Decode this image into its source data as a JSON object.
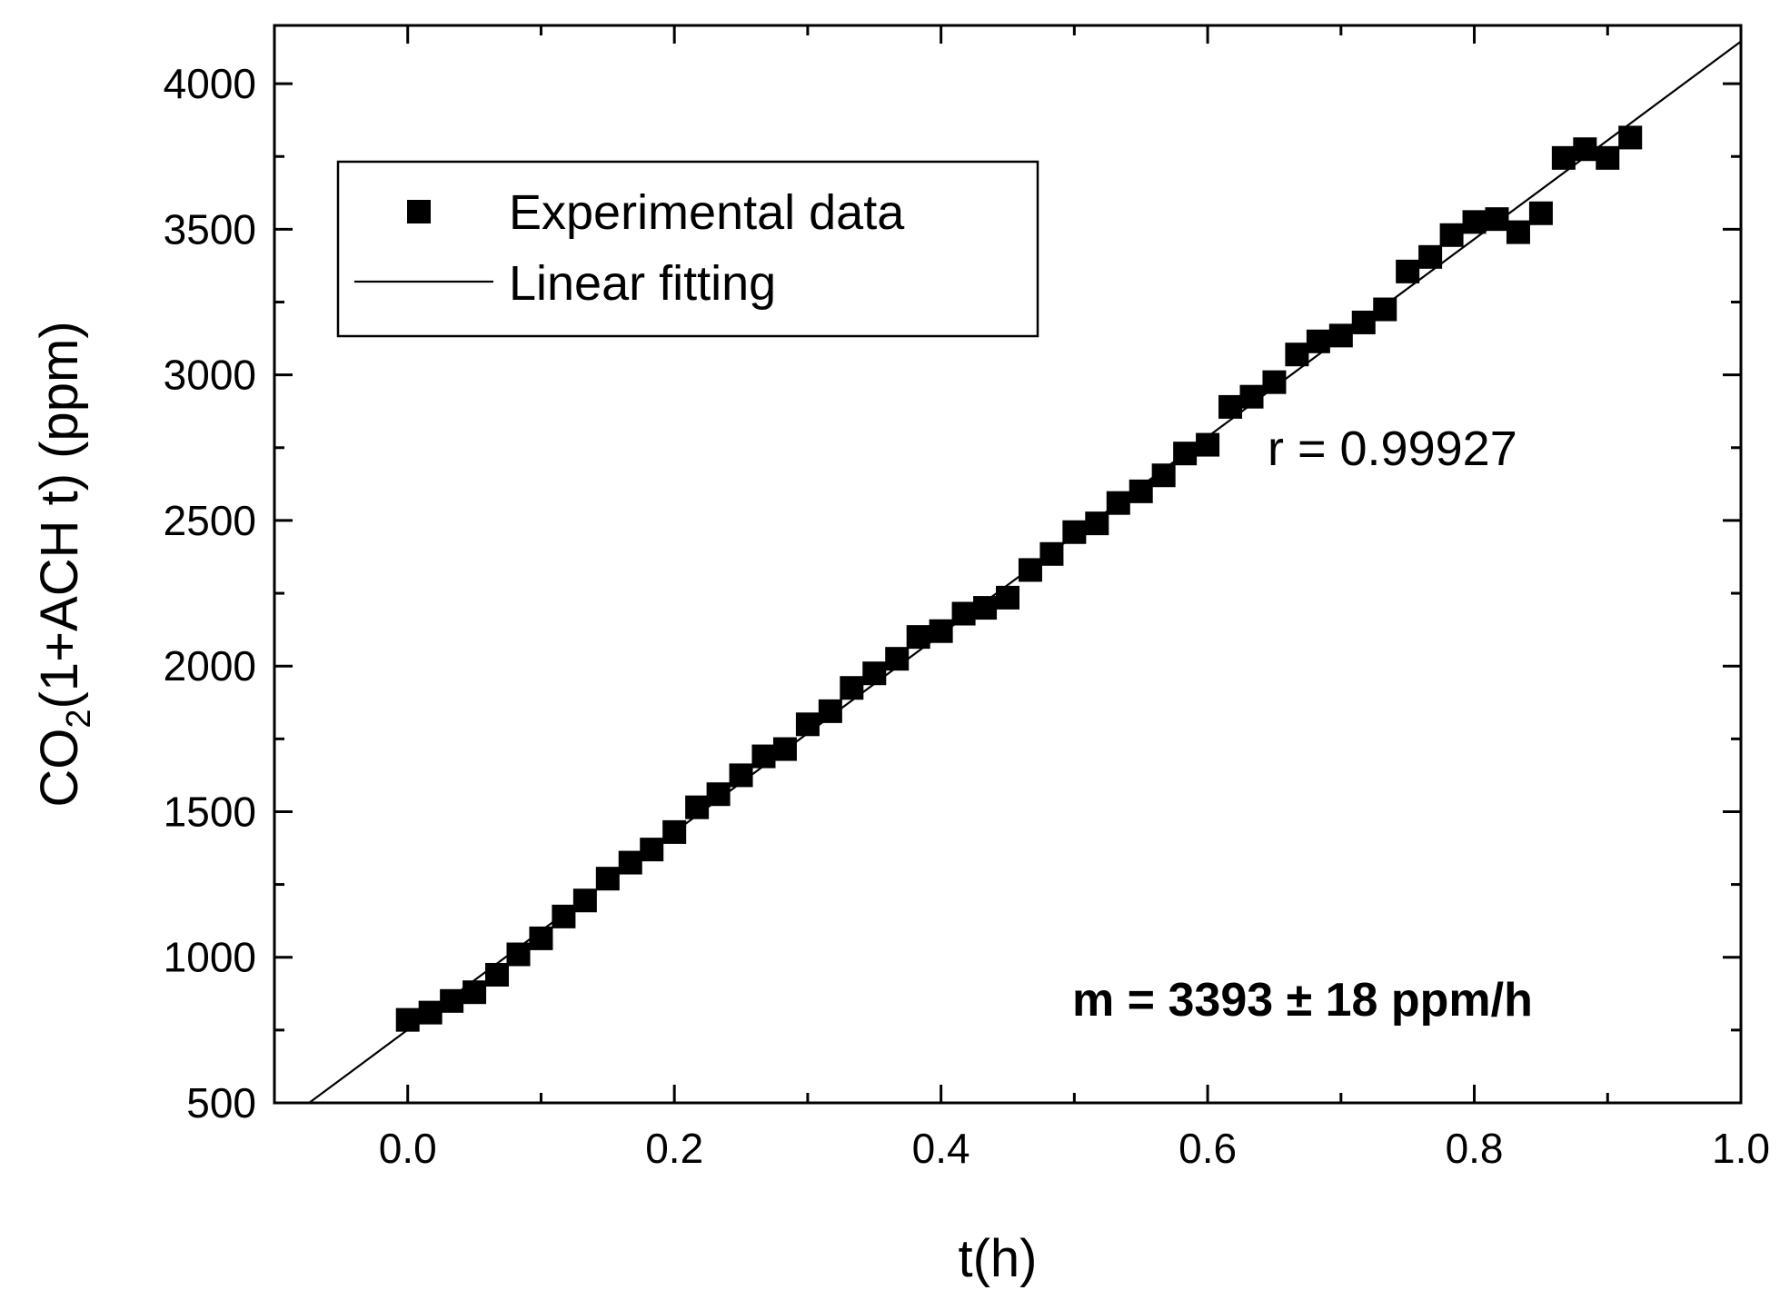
{
  "chart_data": {
    "type": "scatter",
    "title": "",
    "xlabel": "t(h)",
    "ylabel": {
      "main": "CO",
      "subscript": "2",
      "rest": "(1+ACH t) (ppm)"
    },
    "xlim": [
      -0.1,
      1.0
    ],
    "ylim": [
      500,
      4200
    ],
    "x_ticks": [
      0.0,
      0.2,
      0.4,
      0.6,
      0.8,
      1.0
    ],
    "x_tick_labels": [
      "0.0",
      "0.2",
      "0.4",
      "0.6",
      "0.8",
      "1.0"
    ],
    "x_minor_ticks": [
      -0.1,
      0.1,
      0.3,
      0.5,
      0.7,
      0.9
    ],
    "y_ticks": [
      500,
      1000,
      1500,
      2000,
      2500,
      3000,
      3500,
      4000
    ],
    "y_tick_labels": [
      "500",
      "1000",
      "1500",
      "2000",
      "2500",
      "3000",
      "3500",
      "4000"
    ],
    "y_minor_ticks": [
      750,
      1250,
      1750,
      2250,
      2750,
      3250,
      3750
    ],
    "grid": false,
    "legend": {
      "placement": "top-left",
      "entries": [
        {
          "label": "Experimental data",
          "marker": "square"
        },
        {
          "label": "Linear fitting",
          "marker": "line"
        }
      ]
    },
    "annotations": {
      "r_value": "r = 0.99927",
      "slope": "m = 3393 ± 18 ppm/h"
    },
    "series": [
      {
        "name": "Experimental data",
        "kind": "scatter",
        "color": "#000000",
        "x": [
          0.0,
          0.017,
          0.033,
          0.05,
          0.067,
          0.083,
          0.1,
          0.117,
          0.133,
          0.15,
          0.167,
          0.183,
          0.2,
          0.217,
          0.233,
          0.25,
          0.267,
          0.283,
          0.3,
          0.317,
          0.333,
          0.35,
          0.367,
          0.383,
          0.4,
          0.417,
          0.433,
          0.45,
          0.467,
          0.483,
          0.5,
          0.517,
          0.533,
          0.55,
          0.567,
          0.583,
          0.6,
          0.617,
          0.633,
          0.65,
          0.667,
          0.683,
          0.7,
          0.717,
          0.733,
          0.75,
          0.767,
          0.783,
          0.8,
          0.817,
          0.833,
          0.85,
          0.867,
          0.883,
          0.9,
          0.917
        ],
        "y": [
          785,
          810,
          850,
          880,
          940,
          1010,
          1065,
          1140,
          1195,
          1270,
          1325,
          1370,
          1430,
          1515,
          1560,
          1625,
          1690,
          1715,
          1800,
          1845,
          1925,
          1975,
          2025,
          2100,
          2120,
          2180,
          2200,
          2235,
          2330,
          2385,
          2460,
          2490,
          2560,
          2600,
          2655,
          2730,
          2760,
          2890,
          2925,
          2975,
          3070,
          3115,
          3135,
          3180,
          3225,
          3355,
          3405,
          3480,
          3525,
          3535,
          3490,
          3555,
          3745,
          3775,
          3745,
          3815
        ]
      },
      {
        "name": "Linear fitting",
        "kind": "line",
        "color": "#000000",
        "x": [
          -0.074,
          1.0
        ],
        "y": [
          500,
          4145
        ]
      }
    ]
  }
}
